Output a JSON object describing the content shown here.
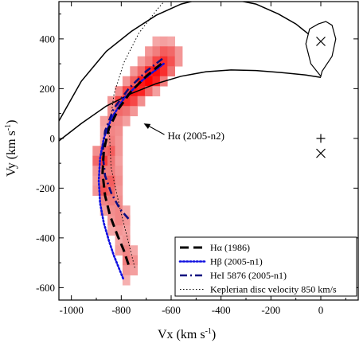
{
  "chart_data": {
    "type": "scatter",
    "xlabel": "Vx (km s",
    "ylabel": "Vy (km s",
    "units_superscript": "-1",
    "xlim": [
      -1050,
      150
    ],
    "ylim": [
      -650,
      550
    ],
    "x_ticks": [
      -1000,
      -800,
      -600,
      -400,
      -200,
      0
    ],
    "y_ticks": [
      -600,
      -400,
      -200,
      0,
      200,
      400
    ],
    "x_tick_labels": [
      "-1000",
      "-800",
      "-600",
      "-400",
      "-200",
      "0"
    ],
    "y_tick_labels": [
      "-600",
      "-400",
      "-200",
      "0",
      "200",
      "400"
    ],
    "grid": false,
    "legend_position": "bottom-right",
    "annotation": {
      "text": "Hα (2005-n2)",
      "arrow_to": [
        -710,
        60
      ]
    },
    "colors": {
      "heat_light": "#f8c9c9",
      "heat_mid": "#f07474",
      "heat_strong": "#ff0000",
      "blue": "#1010e0",
      "navy": "#0c0c80"
    },
    "heatmap": {
      "type": "heatmap",
      "cell": {
        "w": 30,
        "h": 40
      },
      "cells": [
        [
          -660,
          390,
          0.2
        ],
        [
          -630,
          390,
          0.25
        ],
        [
          -600,
          390,
          0.2
        ],
        [
          -690,
          350,
          0.3
        ],
        [
          -660,
          350,
          0.45
        ],
        [
          -630,
          350,
          0.6
        ],
        [
          -600,
          350,
          0.55
        ],
        [
          -570,
          350,
          0.3
        ],
        [
          -720,
          310,
          0.25
        ],
        [
          -690,
          310,
          0.45
        ],
        [
          -660,
          310,
          0.7
        ],
        [
          -630,
          310,
          0.8
        ],
        [
          -600,
          310,
          0.65
        ],
        [
          -570,
          310,
          0.3
        ],
        [
          -750,
          270,
          0.3
        ],
        [
          -720,
          270,
          0.55
        ],
        [
          -690,
          270,
          0.85
        ],
        [
          -660,
          270,
          0.95
        ],
        [
          -630,
          270,
          0.8
        ],
        [
          -600,
          270,
          0.5
        ],
        [
          -780,
          230,
          0.3
        ],
        [
          -750,
          230,
          0.6
        ],
        [
          -720,
          230,
          0.9
        ],
        [
          -690,
          230,
          1.0
        ],
        [
          -660,
          230,
          0.85
        ],
        [
          -630,
          230,
          0.45
        ],
        [
          -810,
          190,
          0.35
        ],
        [
          -780,
          190,
          0.7
        ],
        [
          -750,
          190,
          0.9
        ],
        [
          -720,
          190,
          0.85
        ],
        [
          -690,
          190,
          0.55
        ],
        [
          -660,
          190,
          0.25
        ],
        [
          -840,
          150,
          0.3
        ],
        [
          -810,
          150,
          0.7
        ],
        [
          -780,
          150,
          0.8
        ],
        [
          -750,
          150,
          0.7
        ],
        [
          -720,
          150,
          0.35
        ],
        [
          -840,
          110,
          0.35
        ],
        [
          -810,
          110,
          0.55
        ],
        [
          -780,
          110,
          0.5
        ],
        [
          -750,
          110,
          0.3
        ],
        [
          -870,
          70,
          0.25
        ],
        [
          -840,
          70,
          0.45
        ],
        [
          -810,
          70,
          0.4
        ],
        [
          -780,
          70,
          0.25
        ],
        [
          -870,
          30,
          0.2
        ],
        [
          -840,
          30,
          0.4
        ],
        [
          -810,
          30,
          0.35
        ],
        [
          -870,
          -10,
          0.2
        ],
        [
          -840,
          -10,
          0.45
        ],
        [
          -810,
          -10,
          0.3
        ],
        [
          -900,
          -50,
          0.35
        ],
        [
          -870,
          -50,
          0.55
        ],
        [
          -840,
          -50,
          0.6
        ],
        [
          -810,
          -50,
          0.3
        ],
        [
          -900,
          -90,
          0.55
        ],
        [
          -870,
          -90,
          0.75
        ],
        [
          -840,
          -90,
          0.5
        ],
        [
          -810,
          -90,
          0.25
        ],
        [
          -900,
          -130,
          0.3
        ],
        [
          -870,
          -130,
          0.45
        ],
        [
          -840,
          -130,
          0.45
        ],
        [
          -810,
          -130,
          0.3
        ],
        [
          -900,
          -170,
          0.25
        ],
        [
          -870,
          -170,
          0.55
        ],
        [
          -840,
          -170,
          0.6
        ],
        [
          -810,
          -170,
          0.35
        ],
        [
          -900,
          -210,
          0.3
        ],
        [
          -870,
          -210,
          0.65
        ],
        [
          -840,
          -210,
          0.55
        ],
        [
          -810,
          -210,
          0.3
        ],
        [
          -870,
          -250,
          0.4
        ],
        [
          -840,
          -250,
          0.45
        ],
        [
          -810,
          -250,
          0.35
        ],
        [
          -870,
          -290,
          0.25
        ],
        [
          -840,
          -290,
          0.35
        ],
        [
          -810,
          -290,
          0.4
        ],
        [
          -780,
          -290,
          0.2
        ],
        [
          -840,
          -330,
          0.3
        ],
        [
          -810,
          -330,
          0.4
        ],
        [
          -780,
          -330,
          0.3
        ],
        [
          -840,
          -370,
          0.2
        ],
        [
          -810,
          -370,
          0.3
        ],
        [
          -780,
          -370,
          0.25
        ],
        [
          -810,
          -410,
          0.2
        ],
        [
          -780,
          -410,
          0.3
        ],
        [
          -810,
          -450,
          0.25
        ],
        [
          -780,
          -450,
          0.4
        ],
        [
          -750,
          -450,
          0.2
        ],
        [
          -780,
          -490,
          0.45
        ],
        [
          -750,
          -490,
          0.35
        ],
        [
          -780,
          -530,
          0.3
        ],
        [
          -750,
          -530,
          0.25
        ],
        [
          -780,
          -570,
          0.15
        ]
      ]
    },
    "series": [
      {
        "name": "Hα (1986)",
        "style": "dash",
        "color": "#000000",
        "x": [
          -640,
          -700,
          -760,
          -810,
          -850,
          -870,
          -875,
          -865,
          -845,
          -815,
          -790,
          -770
        ],
        "y": [
          300,
          250,
          190,
          120,
          40,
          -50,
          -140,
          -230,
          -310,
          -390,
          -450,
          -510
        ]
      },
      {
        "name": "Hβ (2005-n1)",
        "style": "dot",
        "color": "#1010e0",
        "x": [
          -630,
          -720,
          -790,
          -840,
          -870,
          -885,
          -890,
          -885,
          -870,
          -850,
          -830,
          -810,
          -790
        ],
        "y": [
          300,
          230,
          160,
          80,
          0,
          -80,
          -170,
          -260,
          -340,
          -410,
          -470,
          -520,
          -570
        ]
      },
      {
        "name": "HeI 5876 (2005-n1)",
        "style": "dashdot",
        "color": "#0c0c80",
        "x": [
          -635,
          -700,
          -770,
          -830,
          -865,
          -875,
          -865,
          -840,
          -805,
          -765
        ],
        "y": [
          320,
          270,
          200,
          120,
          30,
          -60,
          -150,
          -220,
          -285,
          -330
        ]
      },
      {
        "name": "Keplerian disc velocity 850 km/s",
        "style": "thin-dot",
        "color": "#000000",
        "x": [
          -582,
          -655,
          -729,
          -790,
          -829,
          -848,
          -841,
          -807,
          -744
        ],
        "y": [
          602,
          520,
          424,
          304,
          178,
          36,
          -116,
          -273,
          -527
        ]
      }
    ],
    "stream_curves": [
      {
        "x": [
          -1050,
          -960,
          -860,
          -760,
          -660,
          -560,
          -460,
          -360,
          -260,
          -170,
          -100,
          -50
        ],
        "y": [
          70,
          230,
          350,
          430,
          495,
          540,
          565,
          560,
          540,
          500,
          460,
          420
        ]
      },
      {
        "x": [
          -1050,
          -960,
          -860,
          -760,
          -660,
          -560,
          -460,
          -360,
          -260,
          -160,
          -60,
          0
        ],
        "y": [
          -10,
          60,
          130,
          180,
          220,
          250,
          268,
          275,
          273,
          265,
          255,
          245
        ]
      }
    ],
    "lobe": {
      "x": [
        0,
        -40,
        -60,
        -45,
        -10,
        20,
        45,
        60,
        45,
        5,
        0
      ],
      "y": [
        250,
        300,
        380,
        440,
        460,
        470,
        455,
        400,
        330,
        270,
        250
      ]
    },
    "markers": [
      {
        "symbol": "x",
        "x": 0,
        "y": 390
      },
      {
        "symbol": "+",
        "x": 0,
        "y": 0
      },
      {
        "symbol": "x",
        "x": 0,
        "y": -60
      }
    ]
  }
}
